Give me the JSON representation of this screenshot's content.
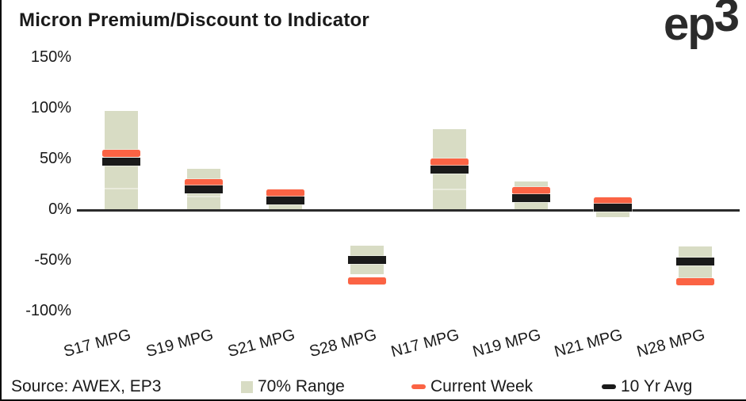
{
  "page": {
    "title": "Micron Premium/Discount to Indicator",
    "logo_ep": "ep",
    "logo_3": "3",
    "source": "Source: AWEX, EP3"
  },
  "legend": {
    "items": [
      {
        "label": "70% Range",
        "swatch": "box",
        "color": "#D8DCC4"
      },
      {
        "label": "Current Week",
        "swatch": "dash",
        "color": "#FB6344"
      },
      {
        "label": "10 Yr Avg",
        "swatch": "dash",
        "color": "#1A1A1A"
      }
    ]
  },
  "colors": {
    "range_fill": "#D8DCC4",
    "range_divider": "#E9EBDC",
    "current_week": "#FB6344",
    "ten_yr_avg": "#1A1A1A",
    "axis_line": "#2B2B2B",
    "text": "#1A1A1A"
  },
  "chart_data": {
    "type": "bar",
    "subtype": "floating-range-bars-with-dash-markers",
    "title": "Micron Premium/Discount to Indicator",
    "categories": [
      "S17 MPG",
      "S19 MPG",
      "S21 MPG",
      "S28 MPG",
      "N17 MPG",
      "N19 MPG",
      "N21 MPG",
      "N28 MPG"
    ],
    "y_axis": {
      "unit": "%",
      "tick_labels": [
        "150%",
        "100%",
        "50%",
        "0%",
        "-50%",
        "-100%"
      ],
      "tick_values": [
        150,
        100,
        50,
        0,
        -50,
        -100
      ],
      "ylim": [
        -115,
        160
      ],
      "grid": false
    },
    "series": [
      {
        "name": "70% Range",
        "type": "range",
        "ranges_pct": [
          [
            0,
            98
          ],
          [
            0,
            41
          ],
          [
            0,
            18
          ],
          [
            -63,
            -35
          ],
          [
            0,
            80
          ],
          [
            0,
            28
          ],
          [
            -7,
            0
          ],
          [
            -67,
            -36
          ]
        ]
      },
      {
        "name": "Current Week",
        "type": "marker",
        "values_pct": [
          56,
          27,
          17,
          -70,
          47,
          19,
          9,
          -71
        ]
      },
      {
        "name": "10 Yr Avg",
        "type": "marker",
        "values_pct": [
          48,
          20,
          9,
          -49,
          40,
          12,
          2,
          -51
        ]
      }
    ],
    "range_inner_divider_pct": [
      22,
      14,
      null,
      null,
      21,
      null,
      null,
      null
    ],
    "legend_position": "bottom",
    "source": "Source: AWEX, EP3"
  }
}
